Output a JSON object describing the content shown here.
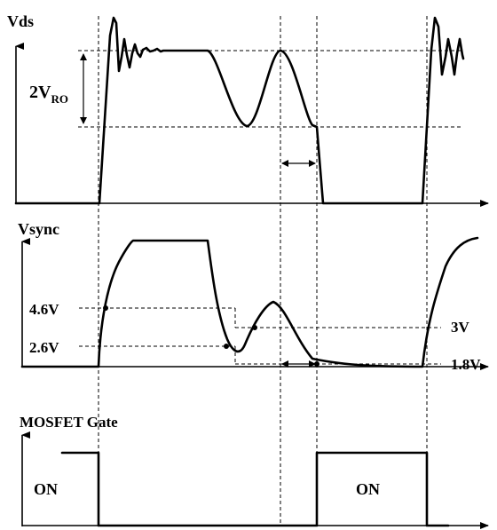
{
  "panels": {
    "vds": {
      "label": "Vds",
      "ann_2v_main": "2V",
      "ann_2v_sub": "RO"
    },
    "vsync": {
      "label": "Vsync",
      "levels": {
        "l1": "4.6V",
        "l2": "2.6V",
        "l3": "3V",
        "l4": "1.8V"
      }
    },
    "gate": {
      "label": "MOSFET Gate",
      "on_left": "ON",
      "on_right": "ON"
    }
  }
}
